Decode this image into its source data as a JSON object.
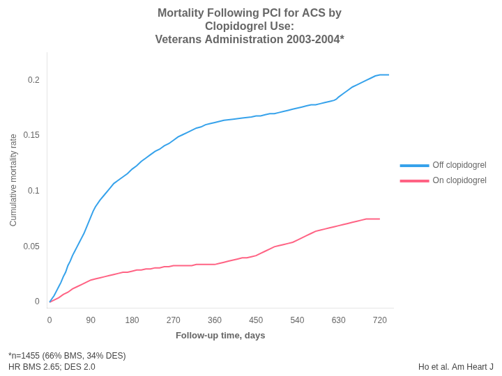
{
  "chart_data": {
    "type": "line",
    "title": "Mortality Following PCI for ACS by\nClopidogrel Use:\nVeterans Administration 2003-2004*",
    "x_label": "Follow-up time, days",
    "y_label": "Cumulative mortality rate",
    "annotations": [
      "*n=1455 (66% BMS, 34% DES)",
      "HR BMS 2.65; DES 2.0",
      "Ho et al. Am Heart J"
    ],
    "xlim": [
      -5,
      750
    ],
    "ylim": [
      -0.005,
      0.225
    ],
    "xticks": [
      0,
      90,
      180,
      270,
      360,
      450,
      540,
      630,
      720
    ],
    "yticks": [
      0,
      0.05,
      0.1,
      0.15,
      0.2
    ],
    "grid": false,
    "legend": "right",
    "series": [
      {
        "name": "Off clopidogrel",
        "x": [
          0,
          5,
          10,
          15,
          20,
          25,
          30,
          35,
          40,
          45,
          50,
          55,
          60,
          65,
          70,
          75,
          80,
          85,
          90,
          95,
          100,
          110,
          120,
          130,
          140,
          150,
          160,
          170,
          180,
          190,
          200,
          210,
          220,
          230,
          240,
          250,
          260,
          270,
          280,
          290,
          300,
          310,
          320,
          330,
          340,
          350,
          360,
          380,
          400,
          420,
          440,
          450,
          460,
          470,
          480,
          490,
          500,
          510,
          520,
          530,
          540,
          550,
          560,
          570,
          580,
          590,
          600,
          610,
          620,
          625,
          630,
          640,
          650,
          660,
          670,
          680,
          690,
          700,
          710,
          720,
          730,
          740
        ],
        "values": [
          0,
          0.003,
          0.006,
          0.01,
          0.014,
          0.018,
          0.023,
          0.027,
          0.033,
          0.037,
          0.042,
          0.046,
          0.05,
          0.054,
          0.058,
          0.062,
          0.067,
          0.072,
          0.077,
          0.082,
          0.086,
          0.092,
          0.097,
          0.102,
          0.107,
          0.11,
          0.113,
          0.116,
          0.12,
          0.123,
          0.127,
          0.13,
          0.133,
          0.136,
          0.138,
          0.141,
          0.143,
          0.146,
          0.149,
          0.151,
          0.153,
          0.155,
          0.157,
          0.158,
          0.16,
          0.161,
          0.162,
          0.164,
          0.165,
          0.166,
          0.167,
          0.168,
          0.168,
          0.169,
          0.17,
          0.17,
          0.171,
          0.172,
          0.173,
          0.174,
          0.175,
          0.176,
          0.177,
          0.178,
          0.178,
          0.179,
          0.18,
          0.181,
          0.182,
          0.183,
          0.185,
          0.188,
          0.191,
          0.194,
          0.196,
          0.198,
          0.2,
          0.202,
          0.204,
          0.205,
          0.205,
          0.205
        ]
      },
      {
        "name": "On clopidogrel",
        "x": [
          0,
          10,
          20,
          30,
          40,
          50,
          60,
          70,
          80,
          90,
          100,
          110,
          120,
          130,
          140,
          150,
          160,
          170,
          180,
          190,
          200,
          210,
          220,
          230,
          240,
          250,
          260,
          270,
          280,
          290,
          300,
          310,
          320,
          330,
          340,
          350,
          360,
          370,
          380,
          390,
          400,
          410,
          420,
          430,
          440,
          450,
          460,
          470,
          480,
          490,
          500,
          510,
          520,
          530,
          540,
          550,
          560,
          570,
          580,
          590,
          600,
          610,
          620,
          630,
          640,
          650,
          660,
          670,
          680,
          690,
          700,
          710,
          720
        ],
        "values": [
          0,
          0.002,
          0.004,
          0.007,
          0.009,
          0.012,
          0.014,
          0.016,
          0.018,
          0.02,
          0.021,
          0.022,
          0.023,
          0.024,
          0.025,
          0.026,
          0.027,
          0.027,
          0.028,
          0.029,
          0.029,
          0.03,
          0.03,
          0.031,
          0.031,
          0.032,
          0.032,
          0.033,
          0.033,
          0.033,
          0.033,
          0.033,
          0.034,
          0.034,
          0.034,
          0.034,
          0.034,
          0.035,
          0.036,
          0.037,
          0.038,
          0.039,
          0.04,
          0.04,
          0.041,
          0.042,
          0.044,
          0.046,
          0.048,
          0.05,
          0.051,
          0.052,
          0.053,
          0.054,
          0.056,
          0.058,
          0.06,
          0.062,
          0.064,
          0.065,
          0.066,
          0.067,
          0.068,
          0.069,
          0.07,
          0.071,
          0.072,
          0.073,
          0.074,
          0.075,
          0.075,
          0.075,
          0.075
        ]
      }
    ]
  }
}
